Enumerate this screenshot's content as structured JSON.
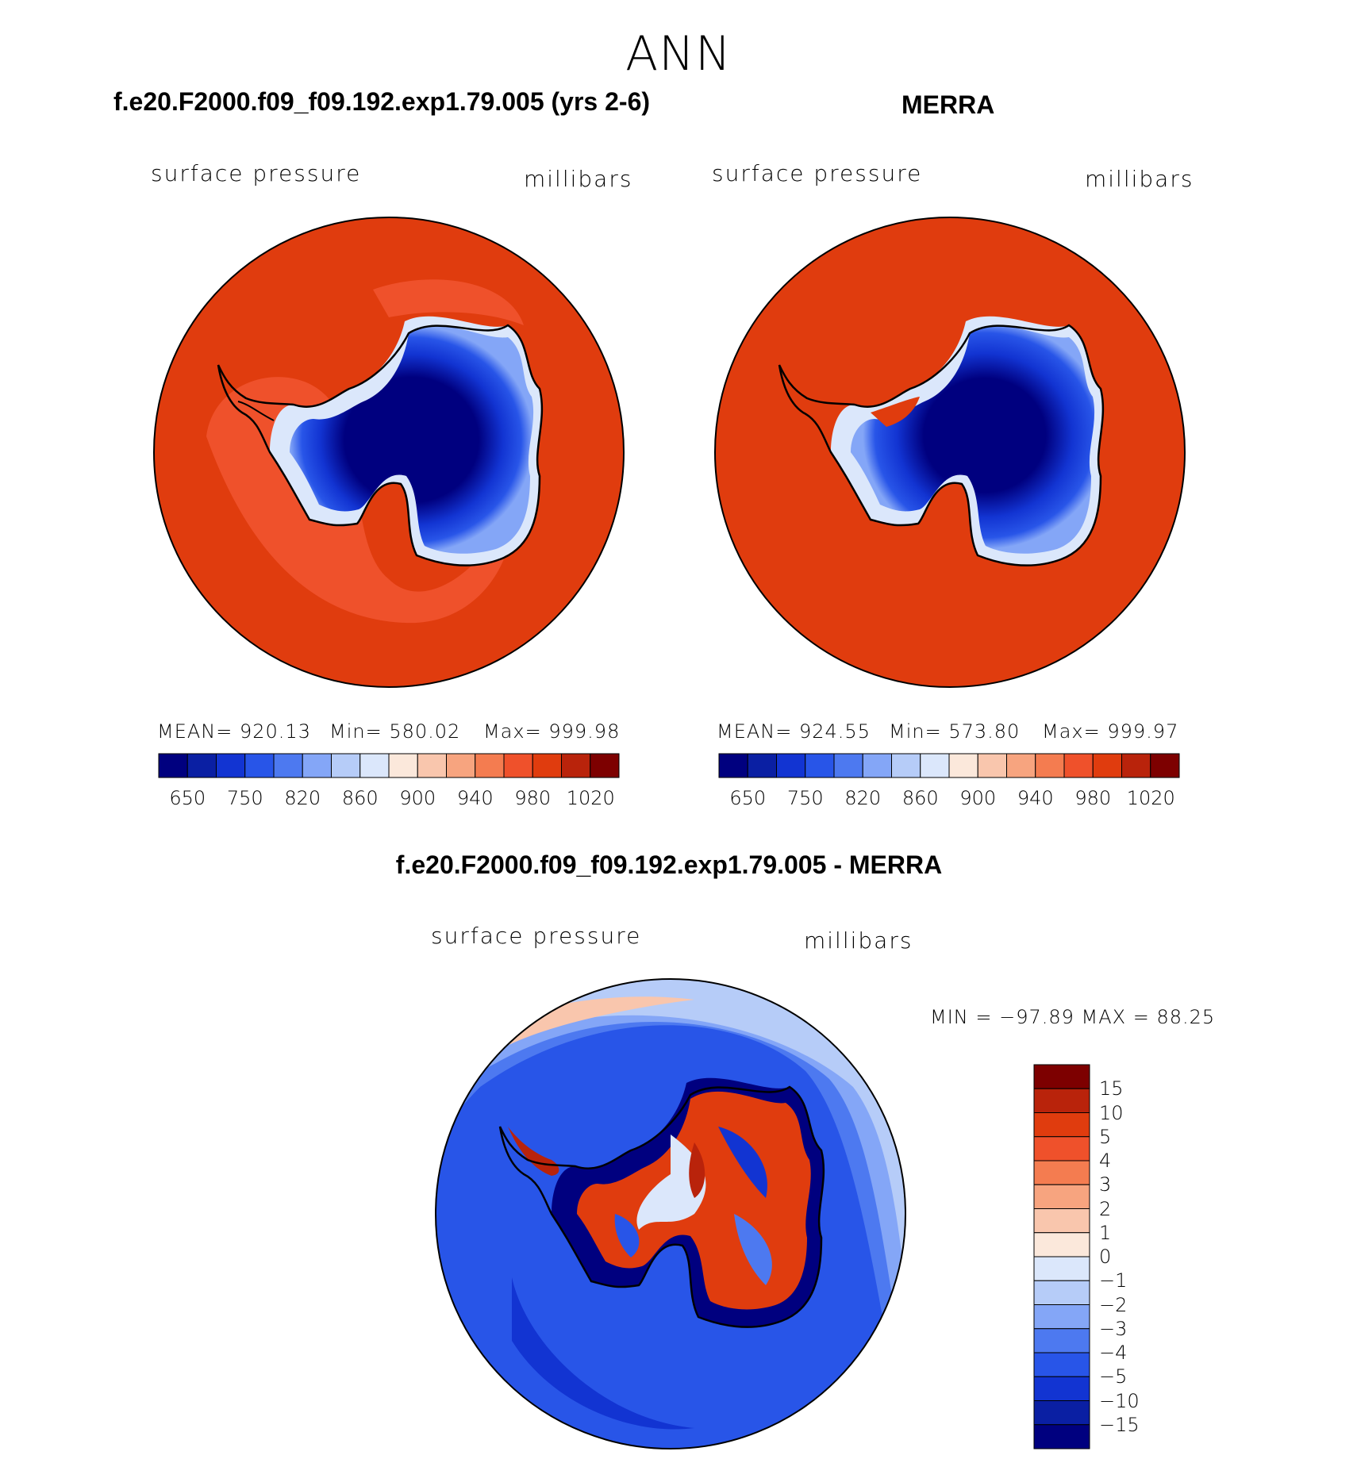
{
  "figure_title": "ANN",
  "panel_left": {
    "case_title": "f.e20.F2000.f09_f09.192.exp1.79.005 (yrs 2-6)",
    "variable": "surface pressure",
    "units": "millibars",
    "stats": {
      "mean": "MEAN= 920.13",
      "min": "Min= 580.02",
      "max": "Max= 999.98"
    }
  },
  "panel_right": {
    "case_title": "MERRA",
    "variable": "surface pressure",
    "units": "millibars",
    "stats": {
      "mean": "MEAN= 924.55",
      "min": "Min= 573.80",
      "max": "Max= 999.97"
    }
  },
  "panel_diff": {
    "case_title": "f.e20.F2000.f09_f09.192.exp1.79.005 - MERRA",
    "variable": "surface pressure",
    "units": "millibars",
    "stats": "MIN = −97.89 MAX =   88.25"
  },
  "colorbar_top": {
    "colors": [
      "#00007f",
      "#0a1fa3",
      "#1234d2",
      "#2855e8",
      "#4d79f0",
      "#84a6f7",
      "#b6ccf8",
      "#dbe7fb",
      "#fbe8db",
      "#f9c6ad",
      "#f7a47f",
      "#f47c50",
      "#ef512b",
      "#e03c0e",
      "#b9230b",
      "#7d0000"
    ],
    "tick_labels": [
      "650",
      "750",
      "820",
      "860",
      "900",
      "940",
      "980",
      "1020"
    ]
  },
  "colorbar_diff": {
    "colors": [
      "#00007f",
      "#0a1fa3",
      "#1234d2",
      "#2855e8",
      "#4d79f0",
      "#84a6f7",
      "#b6ccf8",
      "#dbe7fb",
      "#fbe8db",
      "#f9c6ad",
      "#f7a47f",
      "#f47c50",
      "#ef512b",
      "#e03c0e",
      "#b9230b",
      "#7d0000"
    ],
    "tick_labels": [
      "15",
      "10",
      "5",
      "4",
      "3",
      "2",
      "1",
      "0",
      "−1",
      "−2",
      "−3",
      "−4",
      "−5",
      "−10",
      "−15"
    ]
  },
  "map_colors": {
    "ocean_high": "#e03c0e",
    "ocean_mid": "#ef512b",
    "ice_deep": "#00007f",
    "ice_mid": "#1234d2",
    "ice_light": "#4d79f0",
    "coast": "#000000"
  }
}
